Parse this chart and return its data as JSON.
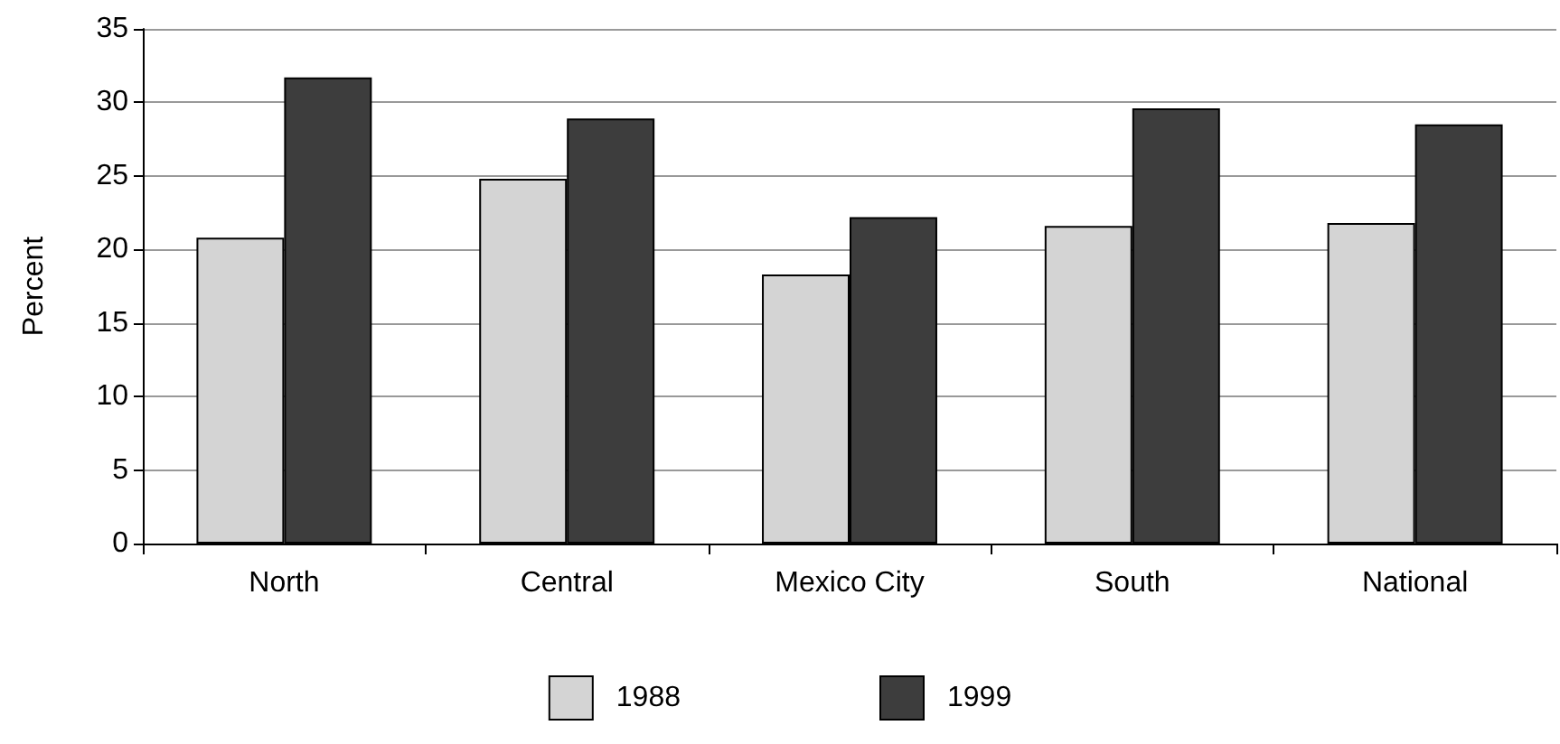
{
  "chart_data": {
    "type": "bar",
    "ylabel": "Percent",
    "categories": [
      "North",
      "Central",
      "Mexico City",
      "South",
      "National"
    ],
    "series": [
      {
        "name": "1988",
        "color": "#d4d4d4",
        "values": [
          20.8,
          24.8,
          18.3,
          21.6,
          21.8
        ]
      },
      {
        "name": "1999",
        "color": "#3d3d3d",
        "values": [
          31.7,
          28.9,
          22.2,
          29.6,
          28.5
        ]
      }
    ],
    "ylim": [
      0,
      35
    ],
    "yticks": [
      0,
      5,
      10,
      15,
      20,
      25,
      30,
      35
    ],
    "grid": "y",
    "legend": "bottom"
  }
}
